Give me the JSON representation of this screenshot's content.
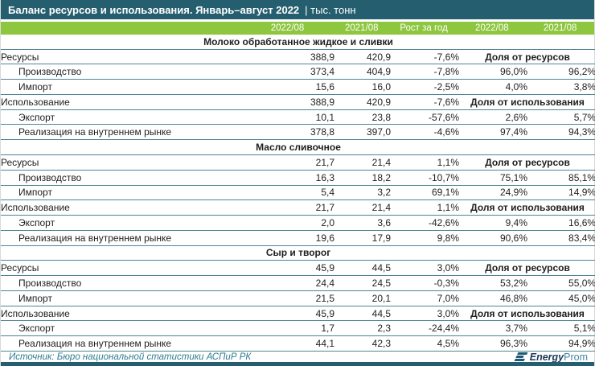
{
  "title_bar": {
    "title": "Баланс ресурсов и использования. Январь–август 2022",
    "unit_display": "| тыс. тонн"
  },
  "footer": {
    "source": "Источник: Бюро национальной статистики АСПиР РК",
    "logo": {
      "name": "EnergyProm",
      "part_bold": "Energy",
      "part_light": "Prom"
    }
  },
  "colors": {
    "header_bar": "#255e6e",
    "column_header_bg": "#8dc63f",
    "row_divider": "#4e8496",
    "source_text": "#2e7b94",
    "logo_dark": "#1b3a5c",
    "logo_light": "#4286a8",
    "bottom_bar": "#255e6e"
  },
  "chart_data": {
    "type": "table",
    "title": "Баланс ресурсов и использования. Январь–август 2022",
    "unit": "тыс. тонн",
    "columns": [
      "2022/08",
      "2021/08",
      "Рост за год",
      "2022/08",
      "2021/08"
    ],
    "sections": [
      {
        "name": "Молоко обработанное жидкое и сливки",
        "rows": [
          {
            "label": "Ресурсы",
            "indent": false,
            "values": [
              "388,9",
              "420,9",
              "-7,6%"
            ],
            "share_label": "Доля от ресурсов"
          },
          {
            "label": "Производство",
            "indent": true,
            "values": [
              "373,4",
              "404,9",
              "-7,8%"
            ],
            "shares": [
              "96,0%",
              "96,2%"
            ]
          },
          {
            "label": "Импорт",
            "indent": true,
            "values": [
              "15,6",
              "16,0",
              "-2,5%"
            ],
            "shares": [
              "4,0%",
              "3,8%"
            ]
          },
          {
            "label": "Использование",
            "indent": false,
            "values": [
              "388,9",
              "420,9",
              "-7,6%"
            ],
            "share_label": "Доля от использования"
          },
          {
            "label": "Экспорт",
            "indent": true,
            "values": [
              "10,1",
              "23,8",
              "-57,6%"
            ],
            "shares": [
              "2,6%",
              "5,7%"
            ]
          },
          {
            "label": "Реализация на внутреннем рынке",
            "indent": true,
            "values": [
              "378,8",
              "397,0",
              "-4,6%"
            ],
            "shares": [
              "97,4%",
              "94,3%"
            ]
          }
        ]
      },
      {
        "name": "Масло сливочное",
        "rows": [
          {
            "label": "Ресурсы",
            "indent": false,
            "values": [
              "21,7",
              "21,4",
              "1,1%"
            ],
            "share_label": "Доля от ресурсов"
          },
          {
            "label": "Производство",
            "indent": true,
            "values": [
              "16,3",
              "18,2",
              "-10,7%"
            ],
            "shares": [
              "75,1%",
              "85,1%"
            ]
          },
          {
            "label": "Импорт",
            "indent": true,
            "values": [
              "5,4",
              "3,2",
              "69,1%"
            ],
            "shares": [
              "24,9%",
              "14,9%"
            ]
          },
          {
            "label": "Использование",
            "indent": false,
            "values": [
              "21,7",
              "21,4",
              "1,1%"
            ],
            "share_label": "Доля от использования"
          },
          {
            "label": "Экспорт",
            "indent": true,
            "values": [
              "2,0",
              "3,6",
              "-42,6%"
            ],
            "shares": [
              "9,4%",
              "16,6%"
            ]
          },
          {
            "label": "Реализация на внутреннем рынке",
            "indent": true,
            "values": [
              "19,6",
              "17,9",
              "9,8%"
            ],
            "shares": [
              "90,6%",
              "83,4%"
            ]
          }
        ]
      },
      {
        "name": "Сыр и творог",
        "rows": [
          {
            "label": "Ресурсы",
            "indent": false,
            "values": [
              "45,9",
              "44,5",
              "3,0%"
            ],
            "share_label": "Доля от ресурсов"
          },
          {
            "label": "Производство",
            "indent": true,
            "values": [
              "24,4",
              "24,5",
              "-0,3%"
            ],
            "shares": [
              "53,2%",
              "55,0%"
            ]
          },
          {
            "label": "Импорт",
            "indent": true,
            "values": [
              "21,5",
              "20,1",
              "7,0%"
            ],
            "shares": [
              "46,8%",
              "45,0%"
            ]
          },
          {
            "label": "Использование",
            "indent": false,
            "values": [
              "45,9",
              "44,5",
              "3,0%"
            ],
            "share_label": "Доля от использования"
          },
          {
            "label": "Экспорт",
            "indent": true,
            "values": [
              "1,7",
              "2,3",
              "-24,4%"
            ],
            "shares": [
              "3,7%",
              "5,1%"
            ]
          },
          {
            "label": "Реализация на внутреннем рынке",
            "indent": true,
            "values": [
              "44,1",
              "42,3",
              "4,5%"
            ],
            "shares": [
              "96,3%",
              "94,9%"
            ]
          }
        ]
      }
    ]
  }
}
